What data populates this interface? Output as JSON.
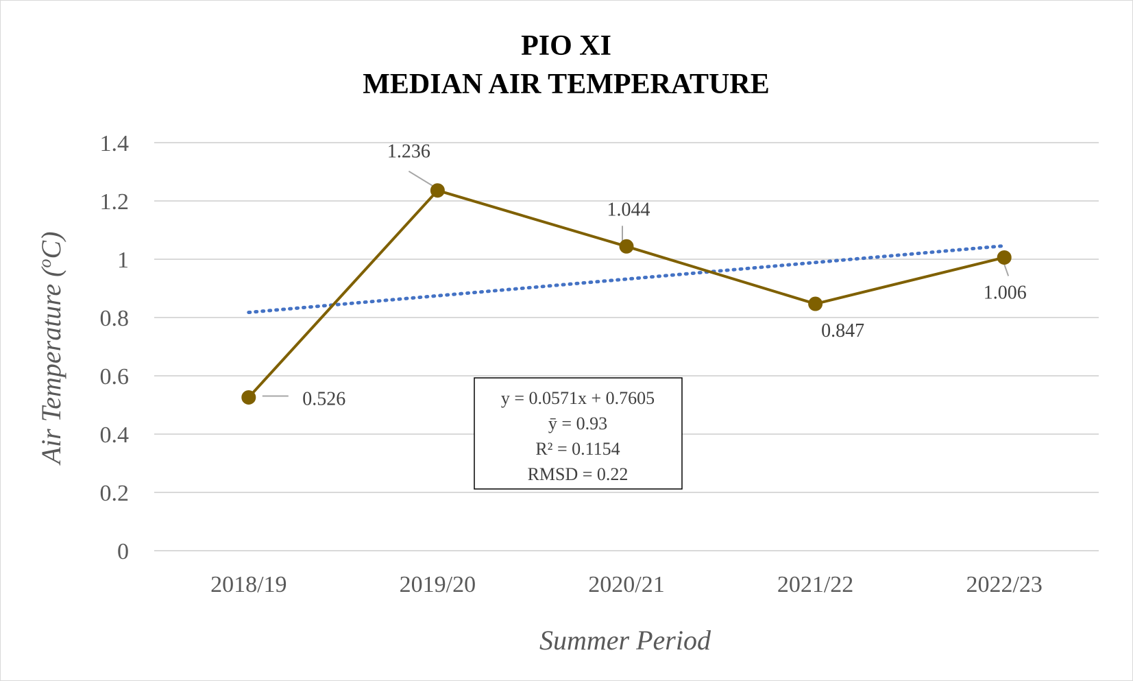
{
  "chart_data": {
    "type": "line",
    "title": "PIO XI",
    "subtitle": "MEDIAN AIR TEMPERATURE",
    "xlabel": "Summer Period",
    "ylabel_main": "Air Temperature (",
    "ylabel_sup": "o",
    "ylabel_end": "C)",
    "categories": [
      "2018/19",
      "2019/20",
      "2020/21",
      "2021/22",
      "2022/23"
    ],
    "series": [
      {
        "values": [
          0.526,
          1.236,
          1.044,
          0.847,
          1.006
        ],
        "labels": [
          "0.526",
          "1.236",
          "1.044",
          "0.847",
          "1.006"
        ],
        "color": "#7f6000",
        "marker": "circle"
      }
    ],
    "trendline": {
      "type": "linear",
      "slope": 0.0571,
      "intercept": 0.7605,
      "color": "#4472c4",
      "style": "dotted"
    },
    "stats_box": [
      "y = 0.0571x + 0.7605",
      "ȳ = 0.93",
      "R² = 0.1154",
      "RMSD = 0.22"
    ],
    "yticks": [
      "0",
      "0.2",
      "0.4",
      "0.6",
      "0.8",
      "1",
      "1.2",
      "1.4"
    ],
    "ylim": [
      0,
      1.4
    ],
    "grid": true,
    "gridline_color": "#d9d9d9"
  }
}
